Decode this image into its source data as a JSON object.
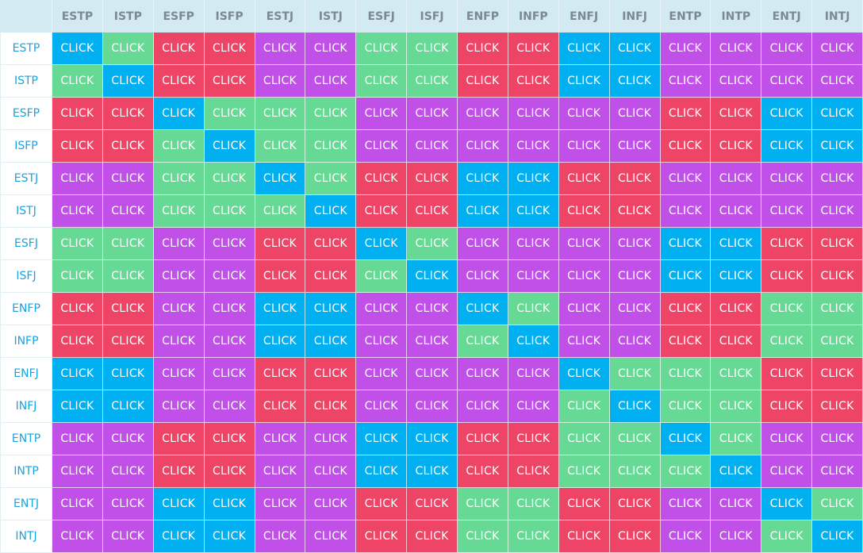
{
  "columns": [
    "ESTP",
    "ISTP",
    "ESFP",
    "ISFP",
    "ESTJ",
    "ISTJ",
    "ESFJ",
    "ISFJ",
    "ENFP",
    "INFP",
    "ENFJ",
    "INFJ",
    "ENTP",
    "INTP",
    "ENTJ",
    "INTJ"
  ],
  "cell_text": "CLICK",
  "rows": [
    {
      "label": "ESTP",
      "cells": [
        "#00b0f0",
        "#66d995",
        "#ee4466",
        "#ee4466",
        "#c050e8",
        "#c050e8",
        "#66d995",
        "#66d995",
        "#ee4466",
        "#ee4466",
        "#00b0f0",
        "#00b0f0",
        "#c050e8",
        "#c050e8",
        "#c050e8",
        "#c050e8"
      ]
    },
    {
      "label": "ISTP",
      "cells": [
        "#66d995",
        "#00b0f0",
        "#ee4466",
        "#ee4466",
        "#c050e8",
        "#c050e8",
        "#66d995",
        "#66d995",
        "#ee4466",
        "#ee4466",
        "#00b0f0",
        "#00b0f0",
        "#c050e8",
        "#c050e8",
        "#c050e8",
        "#c050e8"
      ]
    },
    {
      "label": "ESFP",
      "cells": [
        "#ee4466",
        "#ee4466",
        "#00b0f0",
        "#66d995",
        "#66d995",
        "#66d995",
        "#c050e8",
        "#c050e8",
        "#c050e8",
        "#c050e8",
        "#c050e8",
        "#c050e8",
        "#ee4466",
        "#ee4466",
        "#00b0f0",
        "#00b0f0"
      ]
    },
    {
      "label": "ISFP",
      "cells": [
        "#ee4466",
        "#ee4466",
        "#66d995",
        "#00b0f0",
        "#66d995",
        "#66d995",
        "#c050e8",
        "#c050e8",
        "#c050e8",
        "#c050e8",
        "#c050e8",
        "#c050e8",
        "#ee4466",
        "#ee4466",
        "#00b0f0",
        "#00b0f0"
      ]
    },
    {
      "label": "ESTJ",
      "cells": [
        "#c050e8",
        "#c050e8",
        "#66d995",
        "#66d995",
        "#00b0f0",
        "#66d995",
        "#ee4466",
        "#ee4466",
        "#00b0f0",
        "#00b0f0",
        "#ee4466",
        "#ee4466",
        "#c050e8",
        "#c050e8",
        "#c050e8",
        "#c050e8"
      ]
    },
    {
      "label": "ISTJ",
      "cells": [
        "#c050e8",
        "#c050e8",
        "#66d995",
        "#66d995",
        "#66d995",
        "#00b0f0",
        "#ee4466",
        "#ee4466",
        "#00b0f0",
        "#00b0f0",
        "#ee4466",
        "#ee4466",
        "#c050e8",
        "#c050e8",
        "#c050e8",
        "#c050e8"
      ]
    },
    {
      "label": "ESFJ",
      "cells": [
        "#66d995",
        "#66d995",
        "#c050e8",
        "#c050e8",
        "#ee4466",
        "#ee4466",
        "#00b0f0",
        "#66d995",
        "#c050e8",
        "#c050e8",
        "#c050e8",
        "#c050e8",
        "#00b0f0",
        "#00b0f0",
        "#ee4466",
        "#ee4466"
      ]
    },
    {
      "label": "ISFJ",
      "cells": [
        "#66d995",
        "#66d995",
        "#c050e8",
        "#c050e8",
        "#ee4466",
        "#ee4466",
        "#66d995",
        "#00b0f0",
        "#c050e8",
        "#c050e8",
        "#c050e8",
        "#c050e8",
        "#00b0f0",
        "#00b0f0",
        "#ee4466",
        "#ee4466"
      ]
    },
    {
      "label": "ENFP",
      "cells": [
        "#ee4466",
        "#ee4466",
        "#c050e8",
        "#c050e8",
        "#00b0f0",
        "#00b0f0",
        "#c050e8",
        "#c050e8",
        "#00b0f0",
        "#66d995",
        "#c050e8",
        "#c050e8",
        "#ee4466",
        "#ee4466",
        "#66d995",
        "#66d995"
      ]
    },
    {
      "label": "INFP",
      "cells": [
        "#ee4466",
        "#ee4466",
        "#c050e8",
        "#c050e8",
        "#00b0f0",
        "#00b0f0",
        "#c050e8",
        "#c050e8",
        "#66d995",
        "#00b0f0",
        "#c050e8",
        "#c050e8",
        "#ee4466",
        "#ee4466",
        "#66d995",
        "#66d995"
      ]
    },
    {
      "label": "ENFJ",
      "cells": [
        "#00b0f0",
        "#00b0f0",
        "#c050e8",
        "#c050e8",
        "#ee4466",
        "#ee4466",
        "#c050e8",
        "#c050e8",
        "#c050e8",
        "#c050e8",
        "#00b0f0",
        "#66d995",
        "#66d995",
        "#66d995",
        "#ee4466",
        "#ee4466"
      ]
    },
    {
      "label": "INFJ",
      "cells": [
        "#00b0f0",
        "#00b0f0",
        "#c050e8",
        "#c050e8",
        "#ee4466",
        "#ee4466",
        "#c050e8",
        "#c050e8",
        "#c050e8",
        "#c050e8",
        "#66d995",
        "#00b0f0",
        "#66d995",
        "#66d995",
        "#ee4466",
        "#ee4466"
      ]
    },
    {
      "label": "ENTP",
      "cells": [
        "#c050e8",
        "#c050e8",
        "#ee4466",
        "#ee4466",
        "#c050e8",
        "#c050e8",
        "#00b0f0",
        "#00b0f0",
        "#ee4466",
        "#ee4466",
        "#66d995",
        "#66d995",
        "#00b0f0",
        "#66d995",
        "#c050e8",
        "#c050e8"
      ]
    },
    {
      "label": "INTP",
      "cells": [
        "#c050e8",
        "#c050e8",
        "#ee4466",
        "#ee4466",
        "#c050e8",
        "#c050e8",
        "#00b0f0",
        "#00b0f0",
        "#ee4466",
        "#ee4466",
        "#66d995",
        "#66d995",
        "#66d995",
        "#00b0f0",
        "#c050e8",
        "#c050e8"
      ]
    },
    {
      "label": "ENTJ",
      "cells": [
        "#c050e8",
        "#c050e8",
        "#00b0f0",
        "#00b0f0",
        "#c050e8",
        "#c050e8",
        "#ee4466",
        "#ee4466",
        "#66d995",
        "#66d995",
        "#ee4466",
        "#ee4466",
        "#c050e8",
        "#c050e8",
        "#00b0f0",
        "#66d995"
      ]
    },
    {
      "label": "INTJ",
      "cells": [
        "#c050e8",
        "#c050e8",
        "#00b0f0",
        "#00b0f0",
        "#c050e8",
        "#c050e8",
        "#ee4466",
        "#ee4466",
        "#66d995",
        "#66d995",
        "#ee4466",
        "#ee4466",
        "#c050e8",
        "#c050e8",
        "#66d995",
        "#00b0f0"
      ]
    }
  ]
}
